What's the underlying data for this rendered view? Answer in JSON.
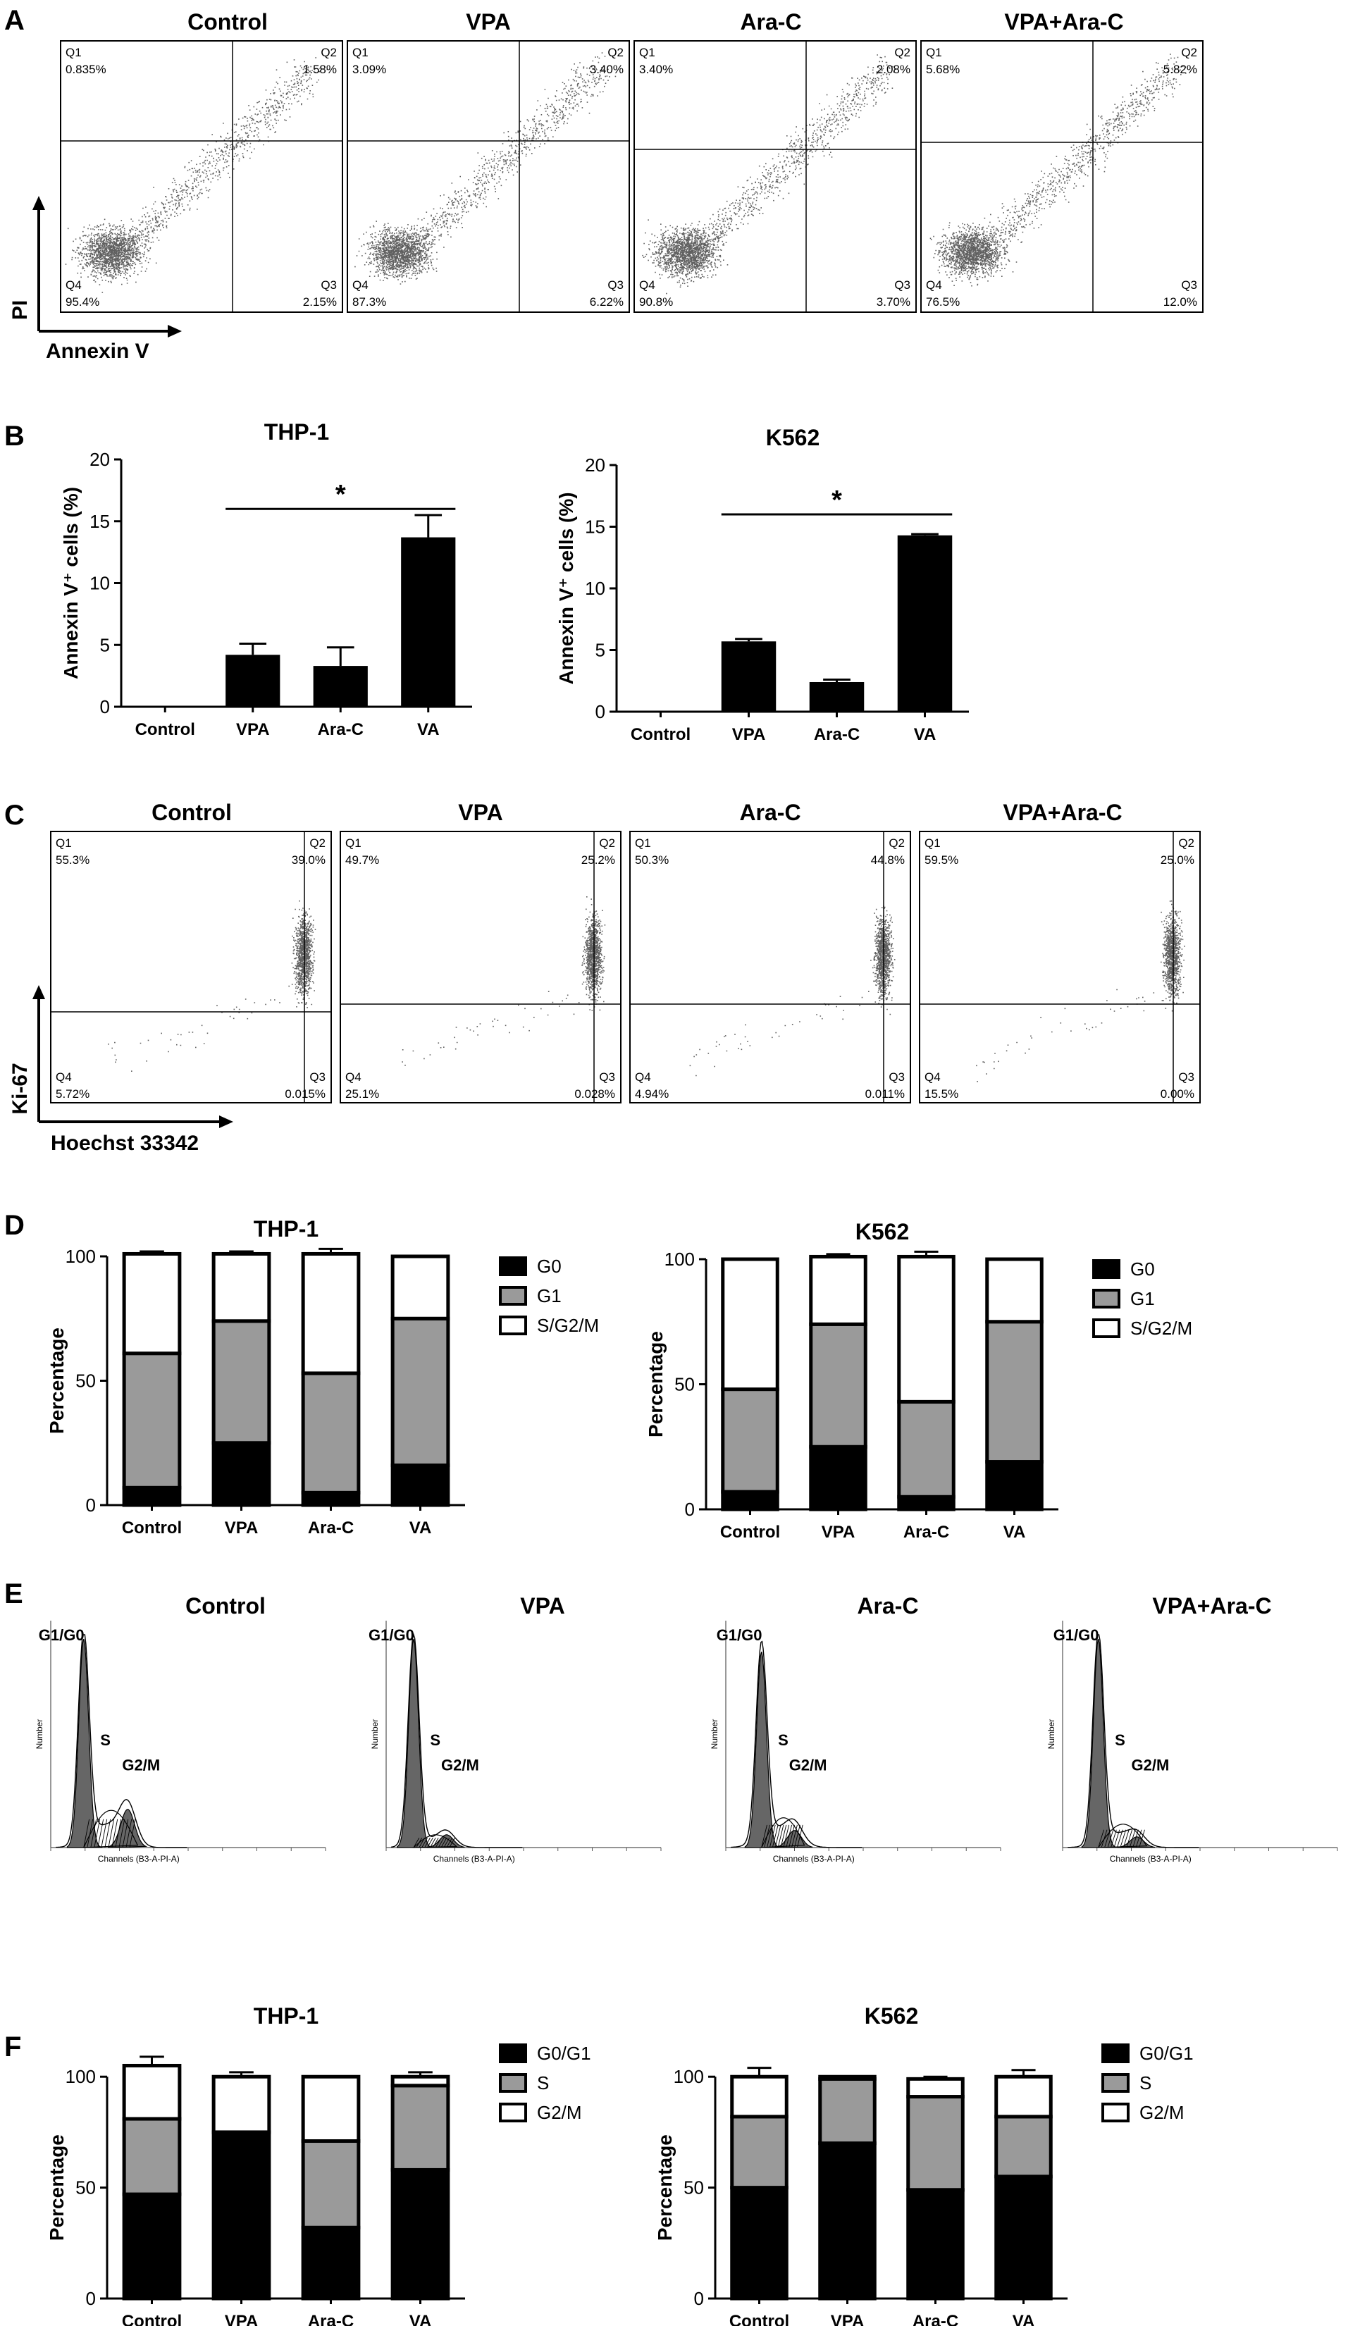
{
  "panels": {
    "A": {
      "letter": "A",
      "y_axis": "PI",
      "x_axis": "Annexin V",
      "plots": [
        {
          "title": "Control",
          "q1": "Q1",
          "q1v": "0.835%",
          "q2": "Q2",
          "q2v": "1.58%",
          "q3": "Q3",
          "q3v": "2.15%",
          "q4": "Q4",
          "q4v": "95.4%"
        },
        {
          "title": "VPA",
          "q1": "Q1",
          "q1v": "3.09%",
          "q2": "Q2",
          "q2v": "3.40%",
          "q3": "Q3",
          "q3v": "6.22%",
          "q4": "Q4",
          "q4v": "87.3%"
        },
        {
          "title": "Ara-C",
          "q1": "Q1",
          "q1v": "3.40%",
          "q2": "Q2",
          "q2v": "2.08%",
          "q3": "Q3",
          "q3v": "3.70%",
          "q4": "Q4",
          "q4v": "90.8%"
        },
        {
          "title": "VPA+Ara-C",
          "q1": "Q1",
          "q1v": "5.68%",
          "q2": "Q2",
          "q2v": "5.82%",
          "q3": "Q3",
          "q3v": "12.0%",
          "q4": "Q4",
          "q4v": "76.5%"
        }
      ]
    },
    "B": {
      "letter": "B"
    },
    "C": {
      "letter": "C",
      "y_axis": "Ki-67",
      "x_axis": "Hoechst 33342",
      "plots": [
        {
          "title": "Control",
          "q1": "Q1",
          "q1v": "55.3%",
          "q2": "Q2",
          "q2v": "39.0%",
          "q3": "Q3",
          "q3v": "0.015%",
          "q4": "Q4",
          "q4v": "5.72%"
        },
        {
          "title": "VPA",
          "q1": "Q1",
          "q1v": "49.7%",
          "q2": "Q2",
          "q2v": "25.2%",
          "q3": "Q3",
          "q3v": "0.028%",
          "q4": "Q4",
          "q4v": "25.1%"
        },
        {
          "title": "Ara-C",
          "q1": "Q1",
          "q1v": "50.3%",
          "q2": "Q2",
          "q2v": "44.8%",
          "q3": "Q3",
          "q3v": "0.011%",
          "q4": "Q4",
          "q4v": "4.94%"
        },
        {
          "title": "VPA+Ara-C",
          "q1": "Q1",
          "q1v": "59.5%",
          "q2": "Q2",
          "q2v": "25.0%",
          "q3": "Q3",
          "q3v": "0.00%",
          "q4": "Q4",
          "q4v": "15.5%"
        }
      ]
    },
    "D": {
      "letter": "D"
    },
    "E": {
      "letter": "E",
      "plots": [
        {
          "title": "Control",
          "g1": "G1/G0",
          "s": "S",
          "g2": "G2/M",
          "ylabel": "Number",
          "xlabel": "Channels (B3-A-PI-A)"
        },
        {
          "title": "VPA",
          "g1": "G1/G0",
          "s": "S",
          "g2": "G2/M",
          "ylabel": "Number",
          "xlabel": "Channels (B3-A-PI-A)"
        },
        {
          "title": "Ara-C",
          "g1": "G1/G0",
          "s": "S",
          "g2": "G2/M",
          "ylabel": "Number",
          "xlabel": "Channels (B3-A-PI-A)"
        },
        {
          "title": "VPA+Ara-C",
          "g1": "G1/G0",
          "s": "S",
          "g2": "G2/M",
          "ylabel": "Number",
          "xlabel": "Channels (B3-A-PI-A)"
        }
      ]
    },
    "F": {
      "letter": "F"
    }
  },
  "colors": {
    "black": "#000000",
    "gray": "#9a9a9a",
    "white": "#ffffff",
    "dot": "#2b2b2b"
  },
  "chart_data": [
    {
      "id": "B_THP1",
      "type": "bar",
      "title": "THP-1",
      "categories": [
        "Control",
        "VPA",
        "Ara-C",
        "VA"
      ],
      "values": [
        0,
        4.2,
        3.3,
        13.7
      ],
      "errors": [
        0,
        0.9,
        1.5,
        1.8
      ],
      "ylabel": "Annexin V⁺ cells (%)",
      "ylim": [
        0,
        20
      ],
      "yticks": [
        0,
        5,
        10,
        15,
        20
      ],
      "significance": {
        "from": 1,
        "to": 3,
        "label": "*"
      }
    },
    {
      "id": "B_K562",
      "type": "bar",
      "title": "K562",
      "categories": [
        "Control",
        "VPA",
        "Ara-C",
        "VA"
      ],
      "values": [
        0,
        5.7,
        2.4,
        14.3
      ],
      "errors": [
        0,
        0.2,
        0.2,
        0.1
      ],
      "ylabel": "Annexin V⁺ cells (%)",
      "ylim": [
        0,
        20
      ],
      "yticks": [
        0,
        5,
        10,
        15,
        20
      ],
      "significance": {
        "from": 1,
        "to": 3,
        "label": "*"
      }
    },
    {
      "id": "D_THP1",
      "type": "bar",
      "stacked": true,
      "title": "THP-1",
      "categories": [
        "Control",
        "VPA",
        "Ara-C",
        "VA"
      ],
      "ylabel": "Percentage",
      "ylim": [
        0,
        100
      ],
      "yticks": [
        0,
        50,
        100
      ],
      "legend": [
        "G0",
        "G1",
        "S/G2/M"
      ],
      "legend_position": "right",
      "series": [
        {
          "values": [
            7,
            25,
            5,
            16
          ],
          "errors": [
            1,
            1,
            0,
            1
          ],
          "color": "black"
        },
        {
          "values": [
            54,
            49,
            48,
            59
          ],
          "errors": [
            2,
            1,
            2,
            1
          ],
          "color": "gray"
        },
        {
          "values": [
            40,
            27,
            48,
            25
          ],
          "errors": [
            1,
            1,
            2,
            0
          ],
          "color": "white"
        }
      ]
    },
    {
      "id": "D_K562",
      "type": "bar",
      "stacked": true,
      "title": "K562",
      "categories": [
        "Control",
        "VPA",
        "Ara-C",
        "VA"
      ],
      "ylabel": "Percentage",
      "ylim": [
        0,
        100
      ],
      "yticks": [
        0,
        50,
        100
      ],
      "legend": [
        "G0",
        "G1",
        "S/G2/M"
      ],
      "legend_position": "right",
      "series": [
        {
          "values": [
            7,
            25,
            5,
            19
          ],
          "errors": [
            1,
            1,
            0,
            1
          ],
          "color": "black"
        },
        {
          "values": [
            41,
            49,
            38,
            56
          ],
          "errors": [
            1,
            1,
            2,
            1
          ],
          "color": "gray"
        },
        {
          "values": [
            52,
            27,
            58,
            25
          ],
          "errors": [
            0,
            1,
            2,
            0
          ],
          "color": "white"
        }
      ]
    },
    {
      "id": "F_THP1",
      "type": "bar",
      "stacked": true,
      "title": "THP-1",
      "categories": [
        "Control",
        "VPA",
        "Ara-C",
        "VA"
      ],
      "ylabel": "Percentage",
      "ylim": [
        0,
        115
      ],
      "yticks": [
        0,
        50,
        100
      ],
      "legend": [
        "G0/G1",
        "S",
        "G2/M"
      ],
      "legend_position": "right",
      "series": [
        {
          "values": [
            47,
            75,
            32,
            58
          ],
          "errors": [
            1,
            2,
            0,
            4
          ],
          "color": "black"
        },
        {
          "values": [
            34,
            0,
            39,
            38
          ],
          "errors": [
            1,
            0,
            0,
            0
          ],
          "color": "gray"
        },
        {
          "values": [
            24,
            25,
            29,
            4
          ],
          "errors": [
            4,
            2,
            0,
            2
          ],
          "color": "white"
        }
      ]
    },
    {
      "id": "F_K562",
      "type": "bar",
      "stacked": true,
      "title": "K562",
      "categories": [
        "Control",
        "VPA",
        "Ara-C",
        "VA"
      ],
      "ylabel": "Percentage",
      "ylim": [
        0,
        115
      ],
      "yticks": [
        0,
        50,
        100
      ],
      "legend": [
        "G0/G1",
        "S",
        "G2/M"
      ],
      "legend_position": "right",
      "series": [
        {
          "values": [
            50,
            70,
            49,
            55
          ],
          "errors": [
            2,
            2,
            0,
            2
          ],
          "color": "black"
        },
        {
          "values": [
            32,
            29,
            42,
            27
          ],
          "errors": [
            1,
            1,
            1,
            1
          ],
          "color": "gray"
        },
        {
          "values": [
            18,
            1,
            8,
            18
          ],
          "errors": [
            4,
            0,
            1,
            3
          ],
          "color": "white"
        }
      ]
    }
  ]
}
